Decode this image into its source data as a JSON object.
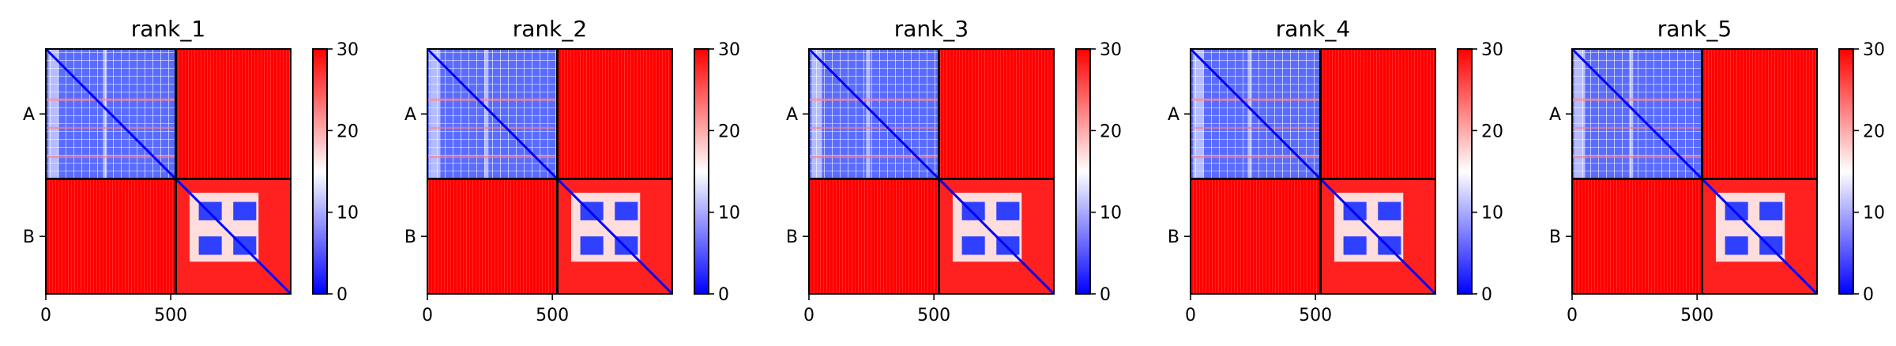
{
  "chart_data": {
    "type": "heatmap",
    "panels": [
      {
        "title": "rank_1"
      },
      {
        "title": "rank_2"
      },
      {
        "title": "rank_3"
      },
      {
        "title": "rank_4"
      },
      {
        "title": "rank_5"
      }
    ],
    "chains": [
      {
        "label": "A",
        "start": 0,
        "end": 520
      },
      {
        "label": "B",
        "start": 520,
        "end": 980
      }
    ],
    "x_ticks": [
      0,
      500
    ],
    "xlim": [
      0,
      980
    ],
    "ylim": [
      980,
      0
    ],
    "colorbar": {
      "ticks": [
        0,
        10,
        20,
        30
      ],
      "range": [
        0,
        30
      ],
      "colormap": [
        "#0000ff",
        "#ffffff",
        "#ff0000"
      ]
    },
    "legend": "none"
  }
}
